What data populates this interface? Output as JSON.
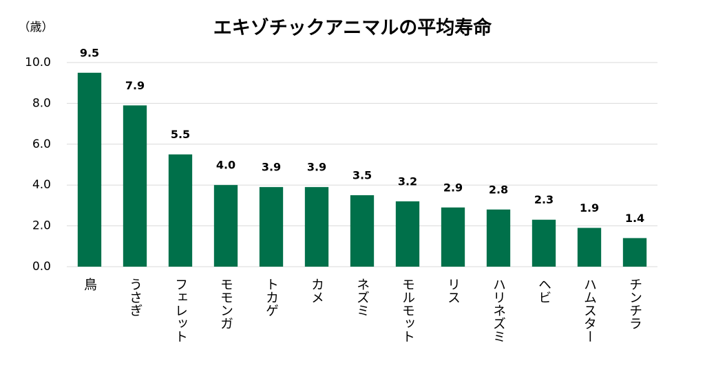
{
  "chart_data": {
    "type": "bar",
    "title": "エキゾチックアニマルの平均寿命",
    "y_label": "（歳）",
    "categories": [
      "鳥",
      "うさぎ",
      "フェレット",
      "モモンガ",
      "トカゲ",
      "カメ",
      "ネズミ",
      "モルモット",
      "リス",
      "ハリネズミ",
      "ヘビ",
      "ハムスター",
      "チンチラ"
    ],
    "values": [
      9.5,
      7.9,
      5.5,
      4,
      3.9,
      3.9,
      3.5,
      3.2,
      2.9,
      2.8,
      2.3,
      1.9,
      1.4
    ],
    "value_labels": [
      "9.5",
      "7.9",
      "5.5",
      "4.0",
      "3.9",
      "3.9",
      "3.5",
      "3.2",
      "2.9",
      "2.8",
      "2.3",
      "1.9",
      "1.4"
    ],
    "color": "#00704a",
    "ylim": [
      0,
      10
    ],
    "yticks": [
      {
        "value": 0,
        "label": "0.0"
      },
      {
        "value": 2,
        "label": "2.0"
      },
      {
        "value": 4,
        "label": "4.0"
      },
      {
        "value": 6,
        "label": "6.0"
      },
      {
        "value": 8,
        "label": "8.0"
      },
      {
        "value": 10,
        "label": "10.0"
      }
    ],
    "grid": true
  }
}
